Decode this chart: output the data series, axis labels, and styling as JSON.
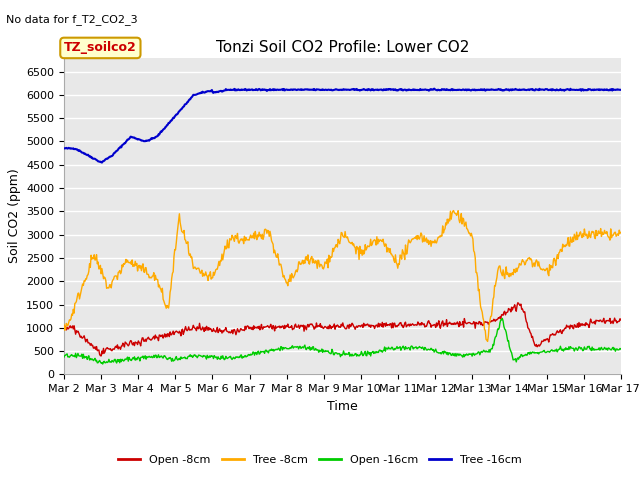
{
  "title": "Tonzi Soil CO2 Profile: Lower CO2",
  "no_data_text": "No data for f_T2_CO2_3",
  "ylabel": "Soil CO2 (ppm)",
  "xlabel": "Time",
  "ylim": [
    0,
    6800
  ],
  "yticks": [
    0,
    500,
    1000,
    1500,
    2000,
    2500,
    3000,
    3500,
    4000,
    4500,
    5000,
    5500,
    6000,
    6500
  ],
  "xtick_labels": [
    "Mar 2",
    "Mar 3",
    "Mar 4",
    "Mar 5",
    "Mar 6",
    "Mar 7",
    "Mar 8",
    "Mar 9",
    "Mar 10",
    "Mar 11",
    "Mar 12",
    "Mar 13",
    "Mar 14",
    "Mar 15",
    "Mar 16",
    "Mar 17"
  ],
  "legend_entries": [
    {
      "label": "Open -8cm",
      "color": "#cc0000"
    },
    {
      "label": "Tree -8cm",
      "color": "#ffaa00"
    },
    {
      "label": "Open -16cm",
      "color": "#00cc00"
    },
    {
      "label": "Tree -16cm",
      "color": "#0000cc"
    }
  ],
  "inset_label": "TZ_soilco2",
  "inset_bg": "#ffffcc",
  "inset_border": "#cc9900",
  "inset_text_color": "#cc0000",
  "plot_bg_color": "#e8e8e8",
  "fig_bg_color": "#ffffff",
  "grid_color": "#ffffff",
  "title_fontsize": 11,
  "axis_fontsize": 9,
  "tick_fontsize": 8,
  "no_data_fontsize": 8
}
